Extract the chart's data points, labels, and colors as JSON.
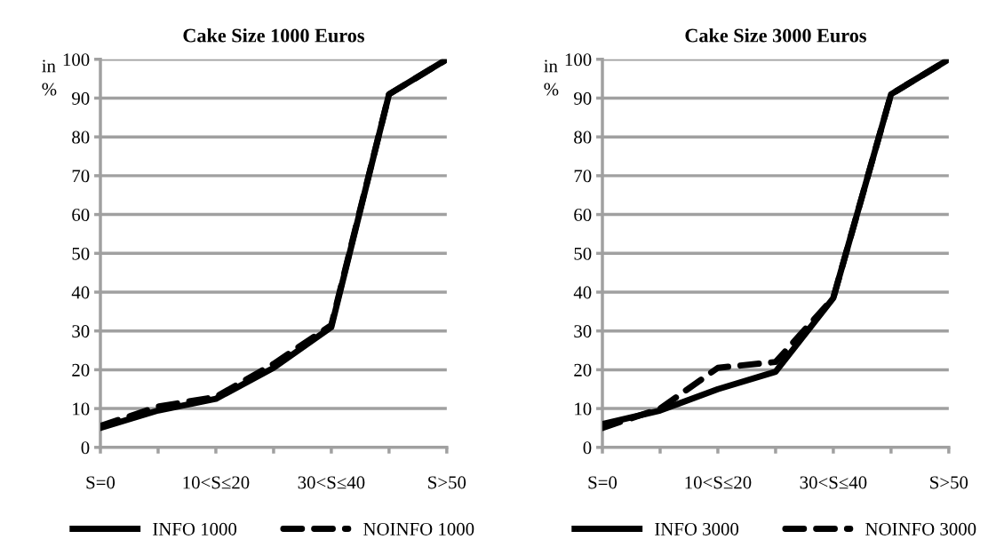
{
  "chart_data": [
    {
      "type": "line",
      "title": "Cake Size 1000 Euros",
      "ylabel": "in\n%",
      "categories": [
        "S=0",
        null,
        "10<S≤20",
        null,
        "30<S≤40",
        null,
        "S>50"
      ],
      "series": [
        {
          "name": "INFO 1000",
          "color": "#000000",
          "line_style": "solid",
          "values": [
            5,
            9.5,
            12.5,
            20.5,
            31,
            91,
            100
          ]
        },
        {
          "name": "NOINFO 1000",
          "color": "#000000",
          "line_style": "dashed",
          "values": [
            5.5,
            10.5,
            13,
            21.5,
            31.5,
            91,
            100
          ]
        }
      ],
      "ylim": [
        0,
        100
      ],
      "yticks": [
        0,
        10,
        20,
        30,
        40,
        50,
        60,
        70,
        80,
        90,
        100
      ],
      "grid": "y",
      "legend": "bottom",
      "marker": "none"
    },
    {
      "type": "line",
      "title": "Cake Size 3000 Euros",
      "ylabel": "in\n%",
      "categories": [
        "S=0",
        null,
        "10<S≤20",
        null,
        "30<S≤40",
        null,
        "S>50"
      ],
      "series": [
        {
          "name": "INFO 3000",
          "color": "#000000",
          "line_style": "solid",
          "values": [
            6,
            9.5,
            15,
            19.5,
            38.5,
            91,
            100
          ]
        },
        {
          "name": "NOINFO 3000",
          "color": "#000000",
          "line_style": "dashed",
          "values": [
            5,
            10,
            20.5,
            22,
            38.5,
            91,
            100
          ]
        }
      ],
      "ylim": [
        0,
        100
      ],
      "yticks": [
        0,
        10,
        20,
        30,
        40,
        50,
        60,
        70,
        80,
        90,
        100
      ],
      "grid": "y",
      "legend": "bottom",
      "marker": "none"
    }
  ]
}
